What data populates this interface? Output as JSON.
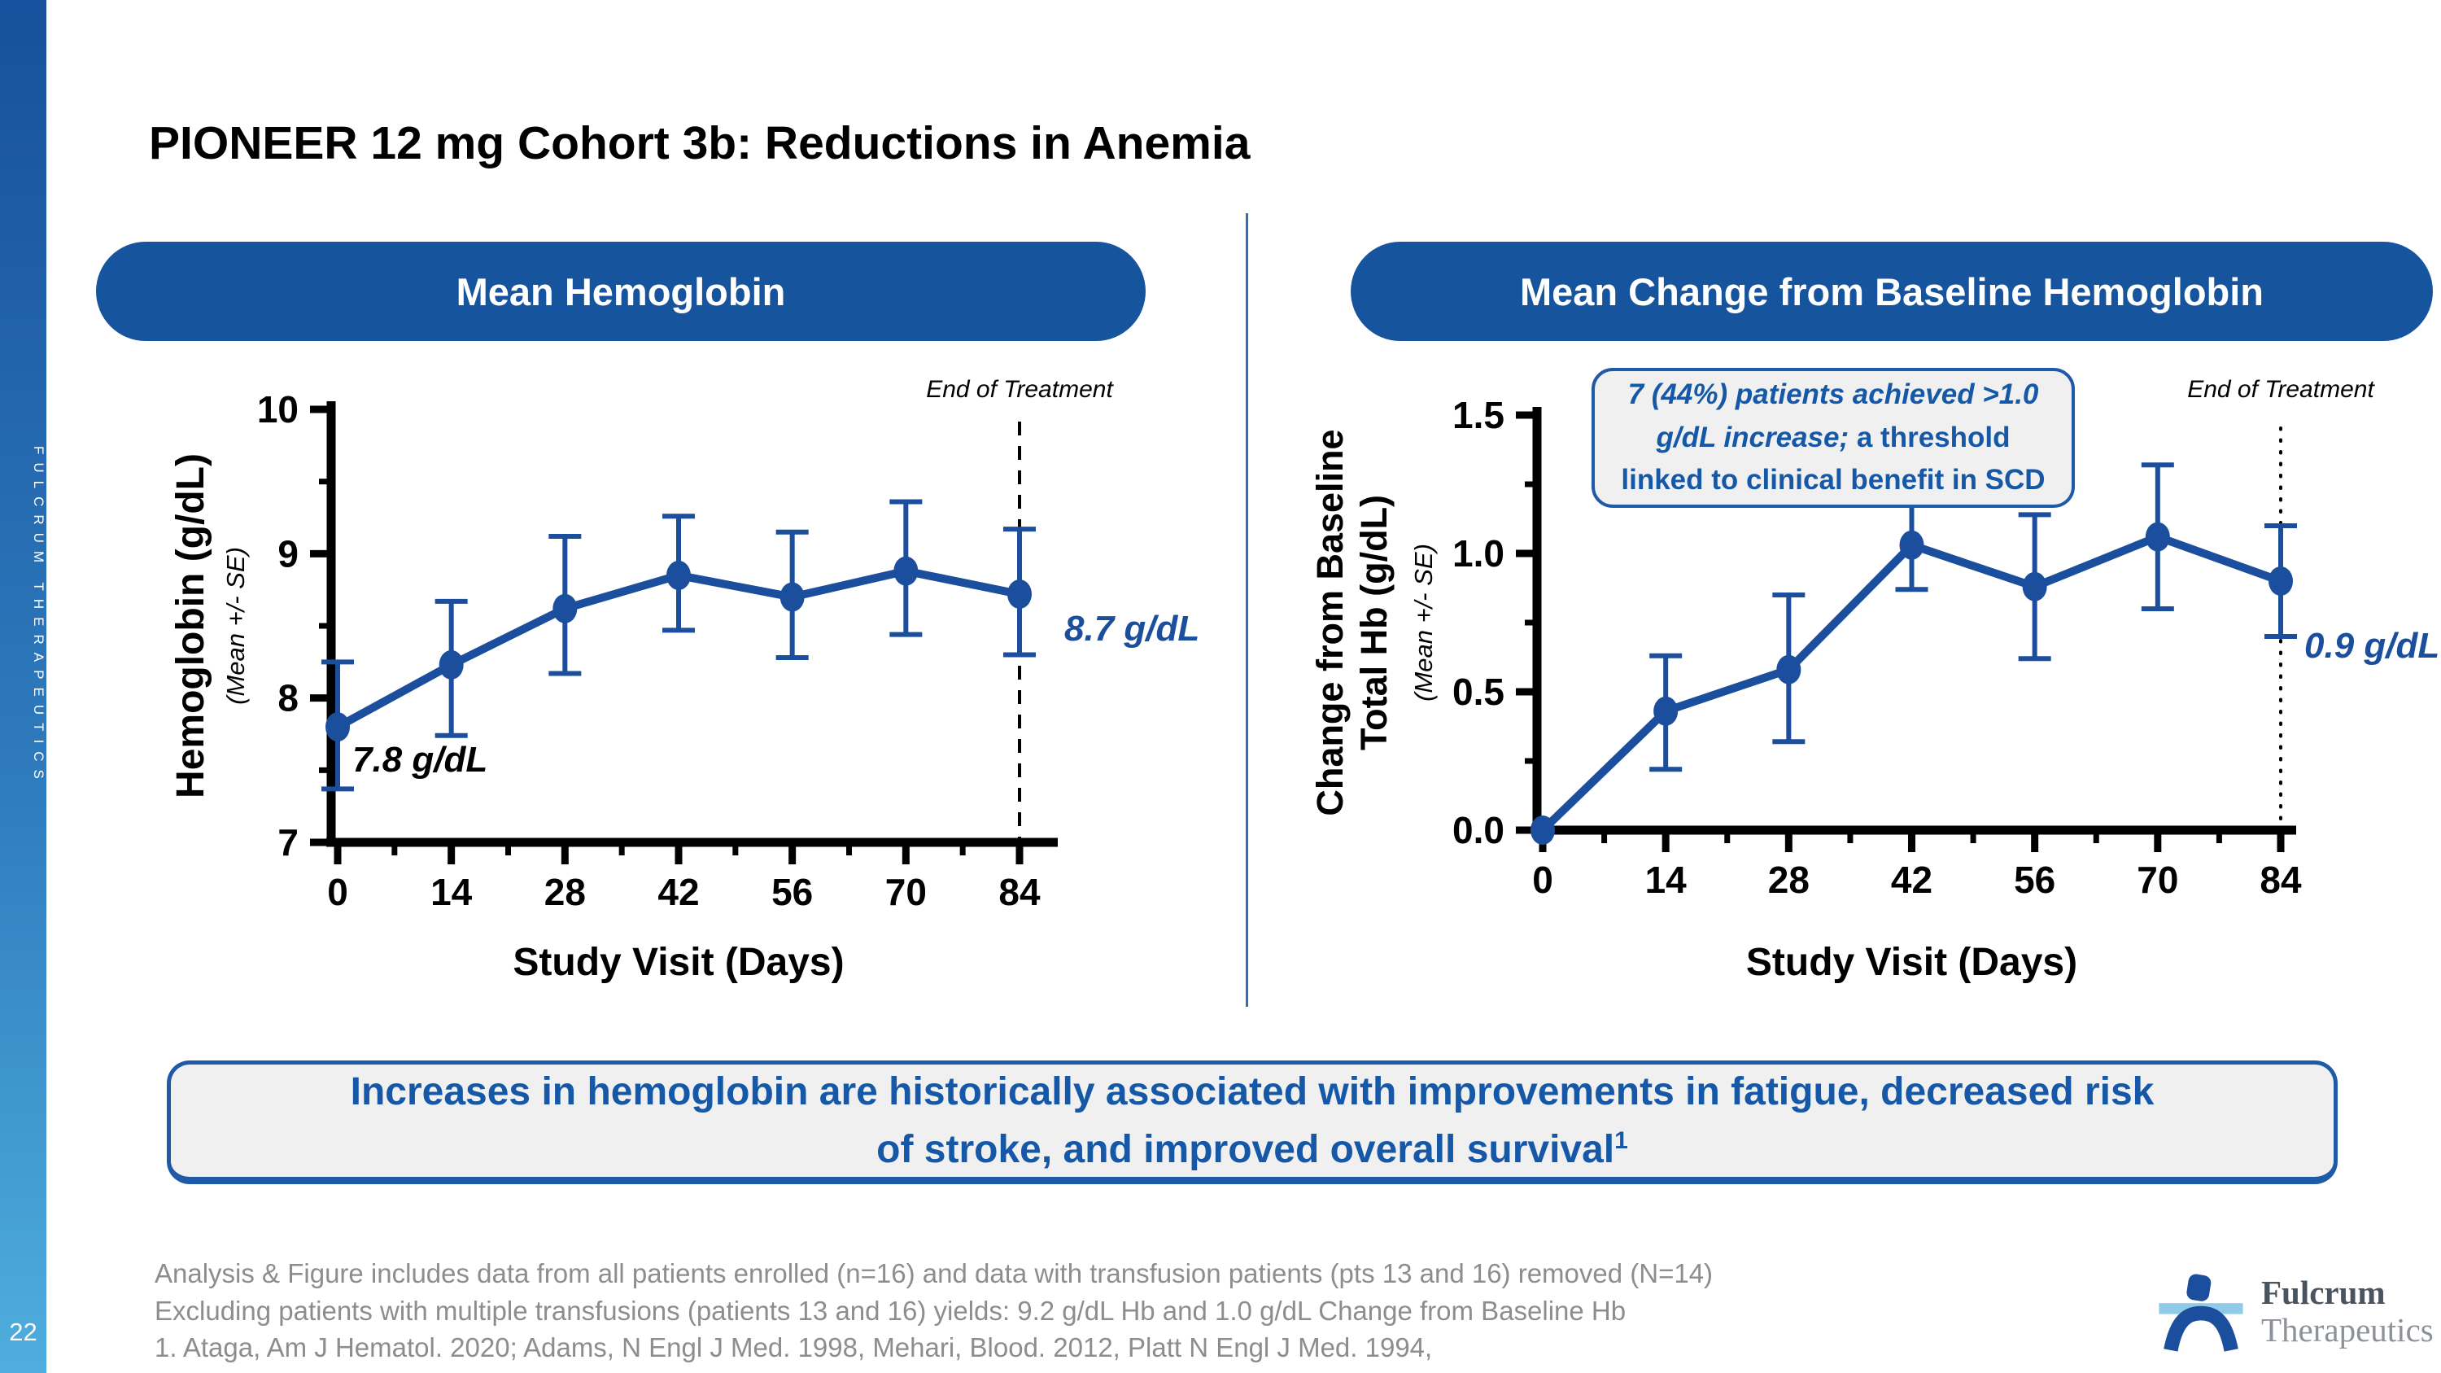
{
  "sidebar": {
    "brand_vertical": "FULCRUM THERAPEUTICS",
    "page_number": "22"
  },
  "title": "PIONEER 12 mg Cohort 3b: Reductions in Anemia",
  "panel_headers": [
    "Mean Hemoglobin",
    "Mean Change from Baseline Hemoglobin"
  ],
  "colors": {
    "accent": "#17549E",
    "chart_blue": "#1B4F9E",
    "text_blue": "#1658A8",
    "box_border": "#1F5AA8",
    "box_fill": "#F0F0F1",
    "divider": "#2E6FB7",
    "sidebar_top": "#17509C",
    "sidebar_bottom": "#4FAEDD",
    "footnote_gray": "#8D8D8D"
  },
  "chart_data": [
    {
      "type": "line",
      "title": "Mean Hemoglobin",
      "xlabel": "Study Visit (Days)",
      "ylabel_lines": [
        "Hemoglobin (g/dL)"
      ],
      "ylabel_sub": "(Mean +/- SE)",
      "x": [
        0,
        14,
        28,
        42,
        56,
        70,
        84
      ],
      "x_tick_labels": [
        "0",
        "14",
        "28",
        "42",
        "56",
        "70",
        "84"
      ],
      "values": [
        7.8,
        8.23,
        8.62,
        8.85,
        8.7,
        8.88,
        8.72
      ],
      "err_low": [
        7.37,
        7.74,
        8.17,
        8.47,
        8.28,
        8.44,
        8.3
      ],
      "err_high": [
        8.25,
        8.67,
        9.12,
        9.26,
        9.15,
        9.36,
        9.17
      ],
      "ylim": [
        7,
        10
      ],
      "yticks": [
        7,
        8,
        9,
        10
      ],
      "ytick_labels": [
        "7",
        "8",
        "9",
        "10"
      ],
      "y_minor": [
        7.5,
        8.5,
        9.5
      ],
      "grid": false,
      "eot_label": "End of Treatment",
      "eot_line_style": "dashed",
      "start_label": "7.8 g/dL",
      "end_label": "8.7 g/dL"
    },
    {
      "type": "line",
      "title": "Mean Change from Baseline Hemoglobin",
      "xlabel": "Study Visit (Days)",
      "ylabel_lines": [
        "Change from Baseline",
        "Total Hb (g/dL)"
      ],
      "ylabel_sub": "(Mean +/- SE)",
      "x": [
        0,
        14,
        28,
        42,
        56,
        70,
        84
      ],
      "x_tick_labels": [
        "0",
        "14",
        "28",
        "42",
        "56",
        "70",
        "84"
      ],
      "values": [
        0.0,
        0.43,
        0.58,
        1.03,
        0.88,
        1.06,
        0.9
      ],
      "err_low": [
        0.0,
        0.22,
        0.32,
        0.87,
        0.62,
        0.8,
        0.7
      ],
      "err_high": [
        0.0,
        0.63,
        0.85,
        1.18,
        1.14,
        1.32,
        1.1
      ],
      "ylim": [
        0,
        1.5
      ],
      "yticks": [
        0,
        0.5,
        1,
        1.5
      ],
      "ytick_labels": [
        "0.0",
        "0.5",
        "1.0",
        "1.5"
      ],
      "y_minor": [
        0.25,
        0.75,
        1.25
      ],
      "grid": false,
      "eot_label": "End of Treatment",
      "eot_line_style": "dotted",
      "end_label": "0.9 g/dL",
      "callout": {
        "lines": [
          {
            "italic": "7 (44%) patients achieved >1.0",
            "normal": ""
          },
          {
            "italic": "g/dL increase;",
            "normal": " a threshold"
          },
          {
            "italic": "",
            "normal": "linked to clinical benefit in SCD"
          }
        ]
      }
    }
  ],
  "statement": {
    "line1": "Increases in hemoglobin are historically associated with improvements in fatigue, decreased risk",
    "line2": "of stroke, and improved overall survival",
    "sup": "1"
  },
  "footnotes": [
    "Analysis & Figure includes data from all patients enrolled (n=16) and data with transfusion patients (pts 13 and 16) removed (N=14)",
    "Excluding patients with multiple transfusions (patients 13 and 16) yields: 9.2 g/dL Hb and 1.0 g/dL Change from Baseline Hb",
    "1. Ataga, Am J Hematol. 2020; Adams, N Engl J Med. 1998, Mehari, Blood. 2012, Platt N Engl J Med. 1994,"
  ],
  "logo": {
    "name_top": "Fulcrum",
    "name_bottom": "Therapeutics"
  }
}
